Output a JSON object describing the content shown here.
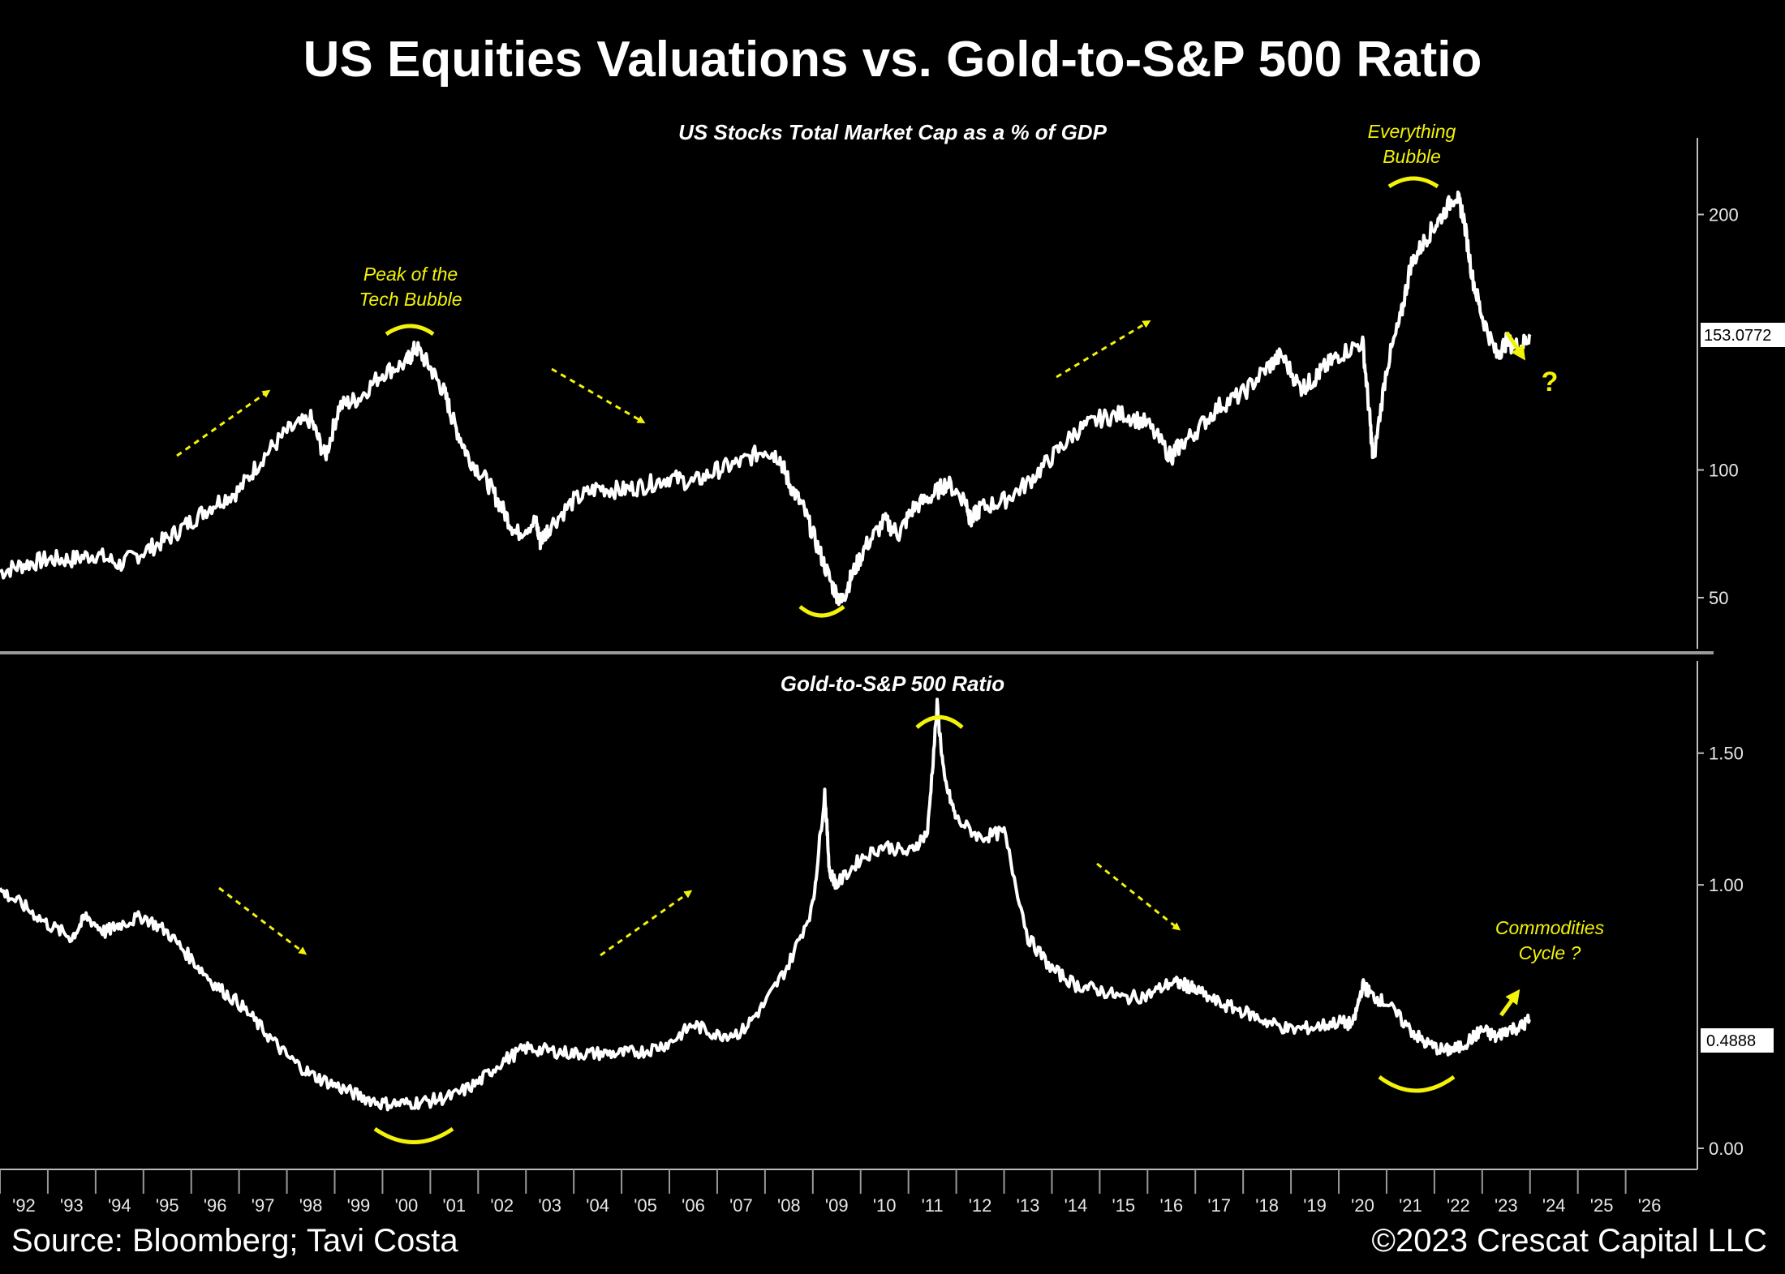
{
  "title": "US Equities Valuations vs. Gold-to-S&P 500 Ratio",
  "source": "Source: Bloomberg; Tavi Costa",
  "copyright": "©2023 Crescat Capital LLC",
  "colors": {
    "background": "#000000",
    "series": "#ffffff",
    "annotation": "#f2f20a"
  },
  "chart_data": [
    {
      "type": "line",
      "title": "US Stocks Total Market Cap as a % of GDP",
      "yticks": [
        50,
        100,
        200
      ],
      "yticklabels": [
        "50",
        "100",
        "200"
      ],
      "ylim": [
        30,
        230
      ],
      "last_value_label": "153.0772",
      "xticks": [
        "'92",
        "'93",
        "'94",
        "'95",
        "'96",
        "'97",
        "'98",
        "'99",
        "'00",
        "'01",
        "'02",
        "'03",
        "'04",
        "'05",
        "'06",
        "'07",
        "'08",
        "'09",
        "'10",
        "'11",
        "'12",
        "'13",
        "'14",
        "'15",
        "'16",
        "'17",
        "'18",
        "'19",
        "'20",
        "'21",
        "'22",
        "'23",
        "'24",
        "'25",
        "'26"
      ],
      "xlim": [
        1991.5,
        2027.0
      ],
      "x": [
        1991.5,
        1992.0,
        1992.5,
        1993.0,
        1993.5,
        1994.0,
        1994.5,
        1995.0,
        1995.5,
        1996.0,
        1996.5,
        1997.0,
        1997.5,
        1998.0,
        1998.3,
        1998.6,
        1999.0,
        1999.5,
        2000.0,
        2000.2,
        2000.5,
        2000.8,
        2001.0,
        2001.3,
        2001.7,
        2002.0,
        2002.3,
        2002.7,
        2002.8,
        2003.0,
        2003.5,
        2004.0,
        2004.5,
        2005.0,
        2005.5,
        2006.0,
        2006.5,
        2007.0,
        2007.5,
        2007.8,
        2008.0,
        2008.3,
        2008.6,
        2008.9,
        2009.1,
        2009.3,
        2009.6,
        2010.0,
        2010.3,
        2010.6,
        2011.0,
        2011.3,
        2011.7,
        2011.8,
        2012.0,
        2012.5,
        2013.0,
        2013.5,
        2014.0,
        2014.5,
        2015.0,
        2015.5,
        2016.0,
        2016.1,
        2016.5,
        2017.0,
        2017.5,
        2018.0,
        2018.3,
        2018.7,
        2018.95,
        2019.2,
        2019.5,
        2020.0,
        2020.15,
        2020.22,
        2020.5,
        2020.8,
        2021.0,
        2021.3,
        2021.6,
        2021.95,
        2022.1,
        2022.3,
        2022.5,
        2022.8,
        2023.0,
        2023.3,
        2023.5
      ],
      "y": [
        60,
        63,
        65,
        65,
        67,
        63,
        68,
        73,
        80,
        87,
        92,
        105,
        115,
        120,
        105,
        125,
        128,
        138,
        142,
        148,
        140,
        130,
        118,
        105,
        95,
        85,
        75,
        80,
        72,
        78,
        88,
        93,
        92,
        94,
        97,
        95,
        100,
        103,
        108,
        105,
        95,
        85,
        70,
        55,
        48,
        58,
        70,
        80,
        75,
        85,
        90,
        95,
        88,
        80,
        85,
        88,
        95,
        105,
        115,
        120,
        122,
        118,
        105,
        108,
        115,
        125,
        130,
        140,
        145,
        132,
        135,
        140,
        145,
        150,
        120,
        103,
        140,
        160,
        180,
        190,
        198,
        208,
        200,
        175,
        160,
        145,
        150,
        148,
        153.08
      ]
    },
    {
      "type": "line",
      "title": "Gold-to-S&P 500 Ratio",
      "yticks": [
        0.0,
        1.0,
        1.5
      ],
      "yticklabels": [
        "0.00",
        "1.00",
        "1.50"
      ],
      "ylim": [
        -0.08,
        1.85
      ],
      "last_value_label": "0.4888",
      "x": [
        1991.5,
        1992.0,
        1992.5,
        1993.0,
        1993.3,
        1993.7,
        1994.0,
        1994.5,
        1995.0,
        1995.5,
        1996.0,
        1996.5,
        1997.0,
        1997.5,
        1998.0,
        1998.5,
        1999.0,
        1999.5,
        2000.0,
        2000.5,
        2001.0,
        2001.5,
        2002.0,
        2002.5,
        2003.0,
        2003.5,
        2004.0,
        2004.5,
        2005.0,
        2005.5,
        2006.0,
        2006.5,
        2007.0,
        2007.5,
        2008.0,
        2008.5,
        2008.75,
        2008.85,
        2009.0,
        2009.5,
        2010.0,
        2010.5,
        2010.9,
        2011.1,
        2011.25,
        2011.5,
        2012.0,
        2012.5,
        2013.0,
        2013.5,
        2014.0,
        2014.5,
        2015.0,
        2015.5,
        2016.0,
        2016.3,
        2016.5,
        2017.0,
        2017.5,
        2018.0,
        2018.5,
        2019.0,
        2019.5,
        2019.8,
        2020.0,
        2020.2,
        2020.5,
        2021.0,
        2021.3,
        2021.7,
        2022.0,
        2022.3,
        2022.5,
        2022.8,
        2023.0,
        2023.3,
        2023.5
      ],
      "y": [
        0.98,
        0.92,
        0.85,
        0.8,
        0.88,
        0.82,
        0.85,
        0.88,
        0.82,
        0.72,
        0.62,
        0.55,
        0.45,
        0.35,
        0.28,
        0.24,
        0.2,
        0.17,
        0.17,
        0.18,
        0.2,
        0.25,
        0.33,
        0.38,
        0.37,
        0.36,
        0.36,
        0.36,
        0.37,
        0.4,
        0.47,
        0.43,
        0.44,
        0.55,
        0.7,
        0.92,
        1.35,
        1.05,
        1.0,
        1.1,
        1.15,
        1.12,
        1.2,
        1.68,
        1.4,
        1.25,
        1.18,
        1.2,
        0.8,
        0.68,
        0.62,
        0.6,
        0.57,
        0.58,
        0.63,
        0.62,
        0.6,
        0.55,
        0.52,
        0.48,
        0.45,
        0.46,
        0.48,
        0.47,
        0.62,
        0.58,
        0.55,
        0.45,
        0.4,
        0.37,
        0.38,
        0.42,
        0.45,
        0.42,
        0.45,
        0.46,
        0.49
      ]
    }
  ],
  "annotations": {
    "top": {
      "peak_tech": [
        "Peak of the",
        "Tech Bubble"
      ],
      "everything": [
        "Everything",
        "Bubble"
      ],
      "question": "?"
    },
    "bottom": {
      "commodities": [
        "Commodities",
        "Cycle ?"
      ]
    }
  }
}
